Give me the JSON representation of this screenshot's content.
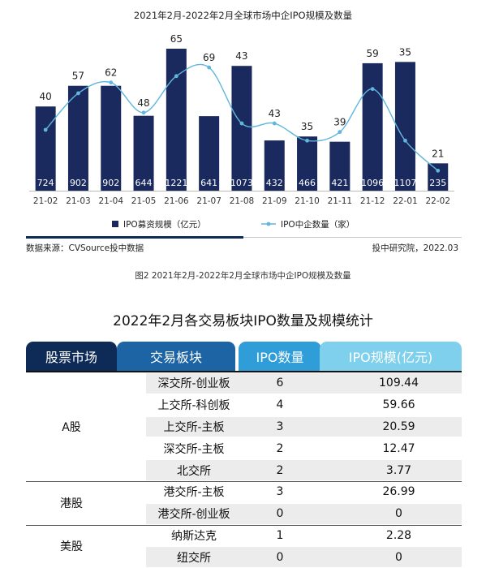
{
  "chart": {
    "title": "2021年2月-2022年2月全球市场中企IPO规模及数量",
    "source": "数据来源：CVSource投中数据",
    "org": "投中研究院，2022.03",
    "caption": "图2 2021年2月-2022年2月全球市场中企IPO规模及数量",
    "colors": {
      "bar": "#1b2a5e",
      "line": "#5fb6de"
    }
  },
  "chart_data": {
    "type": "bar",
    "categories": [
      "21-02",
      "21-03",
      "21-04",
      "21-05",
      "21-06",
      "21-07",
      "21-08",
      "21-09",
      "21-10",
      "21-11",
      "21-12",
      "22-01",
      "22-02"
    ],
    "series": [
      {
        "name": "IPO募资规模（亿元）",
        "type": "bar",
        "values": [
          724,
          902,
          902,
          644,
          1221,
          641,
          1073,
          432,
          466,
          421,
          1096,
          1107,
          235
        ]
      },
      {
        "name": "IPO中企数量（家）",
        "type": "line",
        "values": [
          40,
          57,
          62,
          48,
          65,
          69,
          43,
          43,
          35,
          39,
          59,
          35,
          21
        ]
      }
    ],
    "title": "2021年2月-2022年2月全球市场中企IPO规模及数量",
    "legend": "bottom"
  },
  "table": {
    "title": "2022年2月各交易板块IPO数量及规模统计",
    "headers": [
      "股票市场",
      "交易板块",
      "IPO数量",
      "IPO规模(亿元)"
    ],
    "header_colors": [
      "#0e2a57",
      "#1d64a4",
      "#2f9ed8",
      "#7fd0ec"
    ],
    "band_color": "#ececec",
    "rows": [
      {
        "board": "深交所-创业板",
        "count": "6",
        "size": "109.44"
      },
      {
        "board": "上交所-科创板",
        "count": "4",
        "size": "59.66"
      },
      {
        "board": "上交所-主板",
        "count": "3",
        "size": "20.59"
      },
      {
        "board": "深交所-主板",
        "count": "2",
        "size": "12.47"
      },
      {
        "board": "北交所",
        "count": "2",
        "size": "3.77"
      },
      {
        "board": "港交所-主板",
        "count": "3",
        "size": "26.99"
      },
      {
        "board": "港交所-创业板",
        "count": "0",
        "size": "0"
      },
      {
        "board": "纳斯达克",
        "count": "1",
        "size": "2.28"
      },
      {
        "board": "纽交所",
        "count": "0",
        "size": "0"
      }
    ],
    "markets": [
      {
        "label": "A股",
        "first": 0,
        "span": 5
      },
      {
        "label": "港股",
        "first": 5,
        "span": 2
      },
      {
        "label": "美股",
        "first": 7,
        "span": 2
      }
    ]
  }
}
